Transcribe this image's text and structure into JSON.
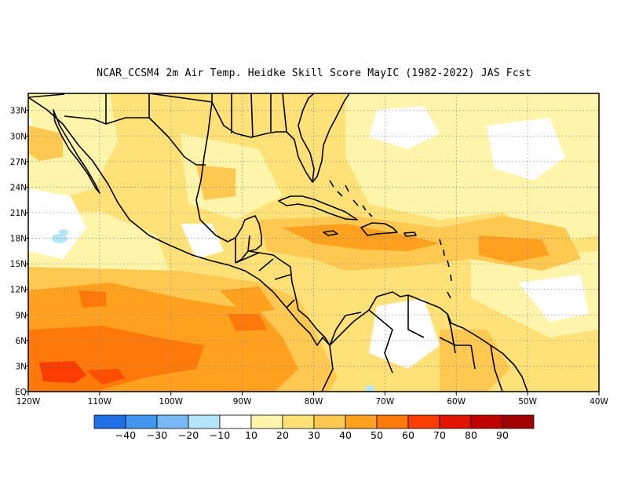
{
  "title": "NCAR_CCSM4  2m Air Temp. Heidke Skill Score MayIC (1982-2022) JAS Fcst",
  "map": {
    "lon_range": [
      -120,
      -40
    ],
    "lat_range": [
      0,
      35
    ],
    "x_ticks": [
      "120W",
      "110W",
      "100W",
      "90W",
      "80W",
      "70W",
      "60W",
      "50W",
      "40W"
    ],
    "y_ticks": [
      "EQ",
      "3N",
      "6N",
      "9N",
      "12N",
      "15N",
      "18N",
      "21N",
      "24N",
      "27N",
      "30N",
      "33N"
    ],
    "grid": "dotted"
  },
  "colorbar": {
    "colors": [
      "#1e6ee6",
      "#4196f0",
      "#78b9f5",
      "#b4e6fa",
      "#ffffff",
      "#fff5aa",
      "#ffe178",
      "#ffc850",
      "#ffa01e",
      "#ff780a",
      "#fa3c00",
      "#e11400",
      "#c00000",
      "#a00000"
    ],
    "labels": [
      "-40",
      "-30",
      "-20",
      "-10",
      "10",
      "20",
      "30",
      "40",
      "50",
      "60",
      "70",
      "80",
      "90"
    ]
  },
  "chart_data": {
    "type": "heatmap",
    "title": "NCAR_CCSM4  2m Air Temp. Heidke Skill Score MayIC (1982-2022) JAS Fcst",
    "x_domain": [
      "120W",
      "40W"
    ],
    "y_domain": [
      "EQ",
      "33N"
    ],
    "value_ranges": [
      "-40",
      "-30",
      "-20",
      "-10",
      "10",
      "20",
      "30",
      "40",
      "50",
      "60",
      "70",
      "80",
      "90"
    ],
    "regions": [
      {
        "area": "eastern Pacific south of 10N",
        "level": "40-70"
      },
      {
        "area": "Pacific ~2N 113W",
        "level": "70-80"
      },
      {
        "area": "Caribbean Sea ~16-19N",
        "level": "30-50"
      },
      {
        "area": "Atlantic ~17N 55W",
        "level": "40-50"
      },
      {
        "area": "Gulf of Mexico",
        "level": "10-30"
      },
      {
        "area": "Pacific ~17N 115W",
        "level": "-20--10"
      }
    ]
  }
}
